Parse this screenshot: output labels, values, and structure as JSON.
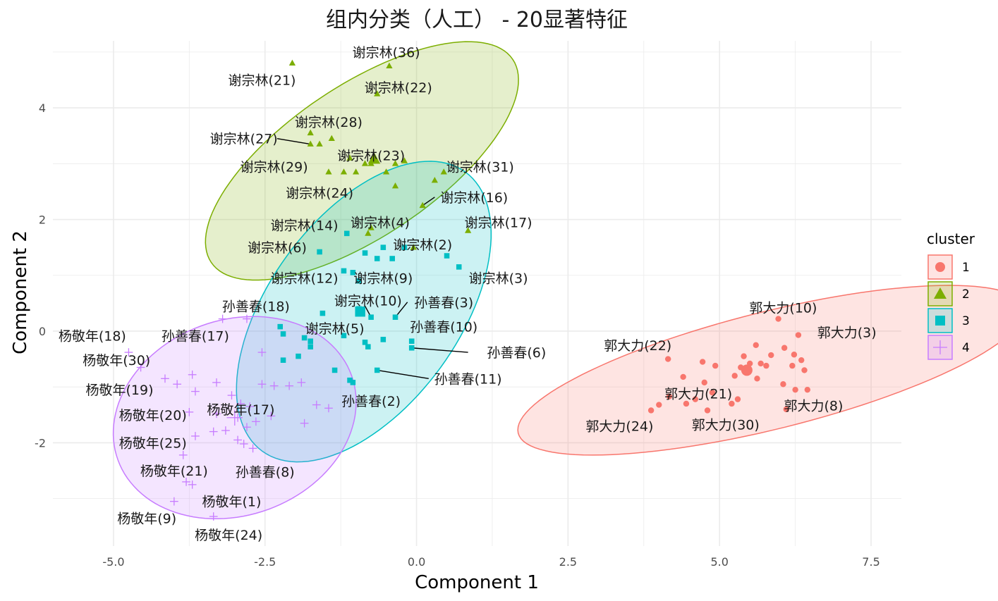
{
  "chart_data": {
    "type": "scatter",
    "title": "组内分类（人工） - 20显著特征",
    "xlabel": "Component 1",
    "ylabel": "Component 2",
    "xlim": [
      -6.0,
      8.0
    ],
    "ylim": [
      -3.85,
      5.2
    ],
    "x_ticks": [
      -5.0,
      -2.5,
      0.0,
      2.5,
      5.0,
      7.5
    ],
    "x_tick_labels": [
      "-5.0",
      "-2.5",
      "0.0",
      "2.5",
      "5.0",
      "7.5"
    ],
    "y_ticks": [
      -2,
      0,
      2,
      4
    ],
    "y_tick_labels": [
      "-2",
      "0",
      "2",
      "4"
    ],
    "grid": true,
    "legend": {
      "title": "cluster",
      "position": "right"
    },
    "series": [
      {
        "name": "1",
        "color": "#F8766D",
        "shape": "circle",
        "ellipse": {
          "cx": 5.85,
          "cy": -0.7,
          "rx": 4.3,
          "ry": 1.05,
          "angle_deg": 14
        },
        "points": [
          [
            5.97,
            0.22
          ],
          [
            6.3,
            -0.07
          ],
          [
            5.6,
            -0.25
          ],
          [
            6.07,
            -0.3
          ],
          [
            6.23,
            -0.42
          ],
          [
            5.85,
            -0.43
          ],
          [
            5.4,
            -0.45
          ],
          [
            6.35,
            -0.52
          ],
          [
            4.15,
            -0.5
          ],
          [
            5.5,
            -0.58
          ],
          [
            5.68,
            -0.58
          ],
          [
            4.93,
            -0.62
          ],
          [
            5.77,
            -0.62
          ],
          [
            6.2,
            -0.62
          ],
          [
            4.72,
            -0.55
          ],
          [
            5.35,
            -0.65
          ],
          [
            5.45,
            -0.68
          ],
          [
            6.4,
            -0.7
          ],
          [
            4.4,
            -0.82
          ],
          [
            5.62,
            -0.85
          ],
          [
            4.75,
            -0.92
          ],
          [
            5.25,
            -0.8
          ],
          [
            6.05,
            -0.95
          ],
          [
            4.88,
            -1.1
          ],
          [
            4.17,
            -1.17
          ],
          [
            6.25,
            -1.05
          ],
          [
            6.45,
            -1.05
          ],
          [
            5.3,
            -1.22
          ],
          [
            4.6,
            -1.22
          ],
          [
            4.45,
            -1.3
          ],
          [
            5.2,
            -1.3
          ],
          [
            4.0,
            -1.32
          ],
          [
            3.87,
            -1.42
          ],
          [
            4.8,
            -1.42
          ],
          [
            6.1,
            -1.4
          ]
        ],
        "centroid": [
          5.45,
          -0.7
        ],
        "labels": [
          {
            "text": "郭大力(10)",
            "x": 6.05,
            "y": 0.42
          },
          {
            "text": "郭大力(3)",
            "x": 7.1,
            "y": -0.02
          },
          {
            "text": "郭大力(22)",
            "x": 3.65,
            "y": -0.25
          },
          {
            "text": "郭大力(21)",
            "x": 4.65,
            "y": -1.12
          },
          {
            "text": "郭大力(8)",
            "x": 6.55,
            "y": -1.33
          },
          {
            "text": "郭大力(24)",
            "x": 3.35,
            "y": -1.7
          },
          {
            "text": "郭大力(30)",
            "x": 5.1,
            "y": -1.67
          }
        ]
      },
      {
        "name": "2",
        "color": "#7CAE00",
        "shape": "triangle",
        "ellipse": {
          "cx": -0.9,
          "cy": 3.05,
          "rx": 3.0,
          "ry": 1.35,
          "angle_deg": 34
        },
        "points": [
          [
            -2.05,
            4.8
          ],
          [
            -0.45,
            4.75
          ],
          [
            -0.65,
            4.25
          ],
          [
            -1.75,
            3.55
          ],
          [
            -1.4,
            3.45
          ],
          [
            -1.6,
            3.35
          ],
          [
            -1.75,
            3.35
          ],
          [
            -1.1,
            3.1
          ],
          [
            -0.85,
            3.0
          ],
          [
            -0.35,
            3.0
          ],
          [
            -0.2,
            3.05
          ],
          [
            -0.75,
            3.0
          ],
          [
            -0.5,
            2.85
          ],
          [
            -1.0,
            2.85
          ],
          [
            -1.45,
            2.85
          ],
          [
            -1.2,
            2.85
          ],
          [
            0.45,
            2.85
          ],
          [
            0.3,
            2.7
          ],
          [
            -0.35,
            2.6
          ],
          [
            0.1,
            2.25
          ],
          [
            -0.75,
            1.85
          ],
          [
            -0.8,
            1.75
          ],
          [
            0.85,
            1.8
          ],
          [
            -0.05,
            1.5
          ]
        ],
        "centroid": [
          -0.7,
          3.08
        ],
        "labels": [
          {
            "text": "谢宗林(36)",
            "x": -0.5,
            "y": 5.0
          },
          {
            "text": "谢宗林(21)",
            "x": -2.55,
            "y": 4.5
          },
          {
            "text": "谢宗林(22)",
            "x": -0.3,
            "y": 4.37
          },
          {
            "text": "谢宗林(28)",
            "x": -1.45,
            "y": 3.75
          },
          {
            "text": "谢宗林(27)",
            "x": -2.85,
            "y": 3.45
          },
          {
            "text": "谢宗林(23)",
            "x": -0.75,
            "y": 3.15
          },
          {
            "text": "谢宗林(29)",
            "x": -2.35,
            "y": 2.95
          },
          {
            "text": "谢宗林(31)",
            "x": 1.05,
            "y": 2.95
          },
          {
            "text": "谢宗林(24)",
            "x": -1.6,
            "y": 2.48
          },
          {
            "text": "谢宗林(16)",
            "x": 0.95,
            "y": 2.4
          },
          {
            "text": "谢宗林(17)",
            "x": 1.35,
            "y": 1.95
          }
        ]
      },
      {
        "name": "3",
        "color": "#00BFC4",
        "shape": "square",
        "ellipse": {
          "cx": -0.87,
          "cy": 0.35,
          "rx": 2.85,
          "ry": 1.7,
          "angle_deg": 54
        },
        "points": [
          [
            -1.15,
            1.75
          ],
          [
            -0.2,
            1.5
          ],
          [
            -0.55,
            1.5
          ],
          [
            0.5,
            1.35
          ],
          [
            -1.6,
            1.42
          ],
          [
            -0.85,
            1.4
          ],
          [
            -0.65,
            1.3
          ],
          [
            -0.4,
            1.3
          ],
          [
            0.7,
            1.15
          ],
          [
            -1.2,
            1.08
          ],
          [
            -1.05,
            1.05
          ],
          [
            -0.95,
            0.9
          ],
          [
            -0.95,
            0.4
          ],
          [
            -0.9,
            0.35
          ],
          [
            -0.75,
            0.25
          ],
          [
            -0.35,
            0.25
          ],
          [
            -1.55,
            0.32
          ],
          [
            -1.2,
            -0.08
          ],
          [
            -2.25,
            0.08
          ],
          [
            -2.2,
            -0.05
          ],
          [
            -1.85,
            -0.12
          ],
          [
            -1.75,
            -0.18
          ],
          [
            -0.55,
            -0.15
          ],
          [
            -0.08,
            -0.18
          ],
          [
            -0.08,
            -0.3
          ],
          [
            -0.85,
            -0.2
          ],
          [
            -1.75,
            -0.28
          ],
          [
            -0.8,
            -0.28
          ],
          [
            -1.95,
            -0.45
          ],
          [
            -2.2,
            -0.52
          ],
          [
            -1.35,
            -0.7
          ],
          [
            -0.65,
            -0.7
          ],
          [
            -1.1,
            -0.88
          ],
          [
            -1.05,
            -0.92
          ]
        ],
        "centroid": [
          -0.93,
          0.35
        ],
        "labels": [
          {
            "text": "谢宗林(14)",
            "x": -1.85,
            "y": 1.9
          },
          {
            "text": "谢宗林(4)",
            "x": -0.6,
            "y": 1.95
          },
          {
            "text": "谢宗林(6)",
            "x": -2.3,
            "y": 1.5
          },
          {
            "text": "谢宗林(2)",
            "x": 0.1,
            "y": 1.55
          },
          {
            "text": "谢宗林(12)",
            "x": -1.85,
            "y": 0.95
          },
          {
            "text": "谢宗林(9)",
            "x": -0.55,
            "y": 0.95
          },
          {
            "text": "谢宗林(3)",
            "x": 1.35,
            "y": 0.95
          },
          {
            "text": "谢宗林(10)",
            "x": -0.8,
            "y": 0.55
          },
          {
            "text": "孙善春(3)",
            "x": 0.45,
            "y": 0.52
          },
          {
            "text": "孙善春(10)",
            "x": 0.45,
            "y": 0.08
          },
          {
            "text": "谢宗林(5)",
            "x": -1.35,
            "y": 0.05
          },
          {
            "text": "孙善春(6)",
            "x": 1.65,
            "y": -0.38
          },
          {
            "text": "孙善春(11)",
            "x": 0.85,
            "y": -0.85
          },
          {
            "text": "孙善春(2)",
            "x": -0.75,
            "y": -1.25
          }
        ]
      },
      {
        "name": "4",
        "color": "#C77CFF",
        "shape": "plus",
        "ellipse": {
          "cx": -3.0,
          "cy": -1.55,
          "rx": 2.05,
          "ry": 1.75,
          "angle_deg": 20
        },
        "points": [
          [
            -3.2,
            0.22
          ],
          [
            -2.8,
            0.22
          ],
          [
            -2.55,
            -0.38
          ],
          [
            -4.75,
            -0.38
          ],
          [
            -4.55,
            -0.65
          ],
          [
            -4.15,
            -0.85
          ],
          [
            -3.95,
            -0.95
          ],
          [
            -3.7,
            -0.78
          ],
          [
            -3.3,
            -0.92
          ],
          [
            -2.55,
            -0.95
          ],
          [
            -2.35,
            -0.98
          ],
          [
            -2.1,
            -0.98
          ],
          [
            -1.9,
            -0.92
          ],
          [
            -3.65,
            -1.08
          ],
          [
            -3.05,
            -1.15
          ],
          [
            -2.9,
            -1.3
          ],
          [
            -1.65,
            -1.32
          ],
          [
            -1.45,
            -1.38
          ],
          [
            -2.75,
            -1.35
          ],
          [
            -3.75,
            -1.45
          ],
          [
            -2.4,
            -1.52
          ],
          [
            -3.3,
            -1.48
          ],
          [
            -2.95,
            -1.55
          ],
          [
            -2.65,
            -1.62
          ],
          [
            -1.85,
            -1.65
          ],
          [
            -2.8,
            -1.72
          ],
          [
            -3.15,
            -1.78
          ],
          [
            -3.35,
            -1.8
          ],
          [
            -3.65,
            -1.88
          ],
          [
            -2.95,
            -1.95
          ],
          [
            -2.85,
            -2.02
          ],
          [
            -2.7,
            -2.1
          ],
          [
            -3.85,
            -2.22
          ],
          [
            -3.8,
            -2.7
          ],
          [
            -3.7,
            -2.75
          ],
          [
            -4.0,
            -3.05
          ],
          [
            -3.35,
            -3.32
          ]
        ],
        "centroid": [
          -3.0,
          -1.55
        ],
        "labels": [
          {
            "text": "孙善春(18)",
            "x": -2.65,
            "y": 0.45
          },
          {
            "text": "孙善春(17)",
            "x": -3.65,
            "y": -0.08
          },
          {
            "text": "杨敬年(18)",
            "x": -5.35,
            "y": -0.08
          },
          {
            "text": "杨敬年(30)",
            "x": -4.95,
            "y": -0.52
          },
          {
            "text": "杨敬年(19)",
            "x": -4.9,
            "y": -1.05
          },
          {
            "text": "杨敬年(20)",
            "x": -4.35,
            "y": -1.5
          },
          {
            "text": "杨敬年(17)",
            "x": -2.9,
            "y": -1.4
          },
          {
            "text": "杨敬年(25)",
            "x": -4.35,
            "y": -2.0
          },
          {
            "text": "杨敬年(21)",
            "x": -4.0,
            "y": -2.5
          },
          {
            "text": "孙善春(8)",
            "x": -2.5,
            "y": -2.52
          },
          {
            "text": "杨敬年(1)",
            "x": -3.05,
            "y": -3.05
          },
          {
            "text": "杨敬年(9)",
            "x": -4.45,
            "y": -3.35
          },
          {
            "text": "杨敬年(24)",
            "x": -3.1,
            "y": -3.65
          }
        ]
      }
    ]
  }
}
